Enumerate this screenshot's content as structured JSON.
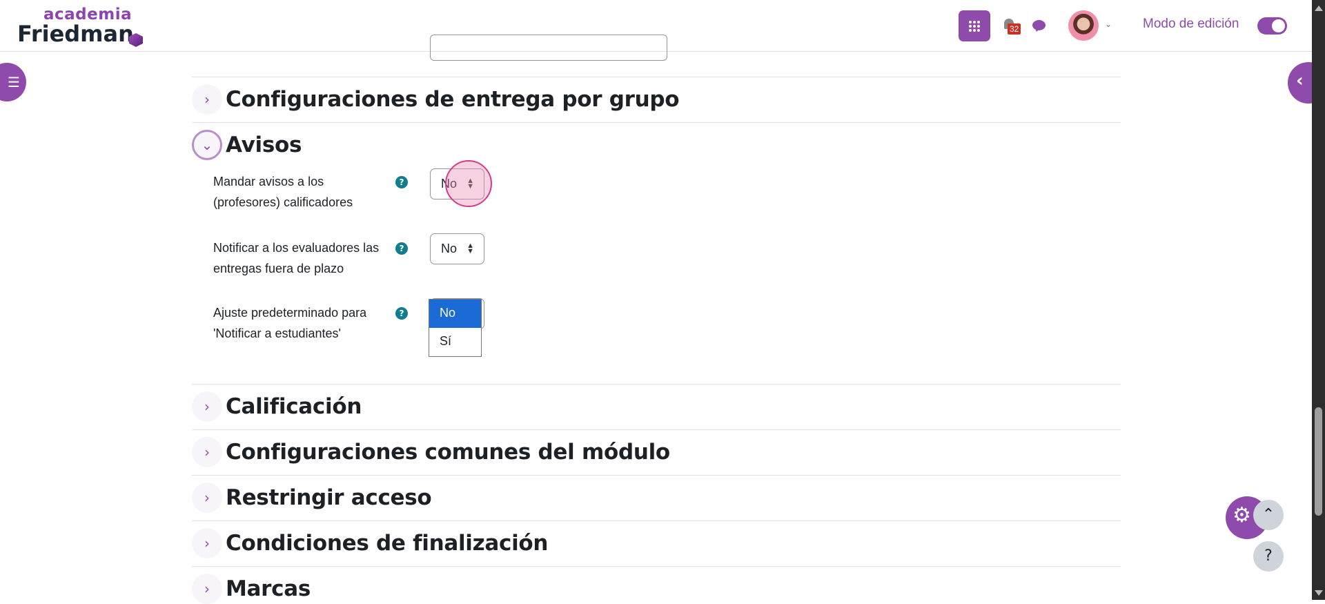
{
  "header": {
    "logo_top": "academia",
    "logo_bottom": "Friedman",
    "notification_count": "32",
    "edit_mode_label": "Modo de edición",
    "edit_mode_on": true
  },
  "sections": [
    {
      "title": "Configuraciones de entrega por grupo",
      "expanded": false
    },
    {
      "title": "Avisos",
      "expanded": true
    },
    {
      "title": "Calificación",
      "expanded": false
    },
    {
      "title": "Configuraciones comunes del módulo",
      "expanded": false
    },
    {
      "title": "Restringir acceso",
      "expanded": false
    },
    {
      "title": "Condiciones de finalización",
      "expanded": false
    },
    {
      "title": "Marcas",
      "expanded": false
    }
  ],
  "avisos": {
    "fields": [
      {
        "label": "Mandar avisos a los (profesores) calificadores",
        "value": "No"
      },
      {
        "label": "Notificar a los evaluadores las entregas fuera de plazo",
        "value": "No"
      },
      {
        "label": "Ajuste predeterminado para 'Notificar a estudiantes'",
        "value": "No",
        "options": [
          "No",
          "Sí"
        ]
      }
    ]
  },
  "fab": {
    "help": "?"
  },
  "colors": {
    "brand": "#8e4bab",
    "help": "#0f7f8f",
    "badge": "#ca3120",
    "selected_option": "#1a6bd6"
  }
}
